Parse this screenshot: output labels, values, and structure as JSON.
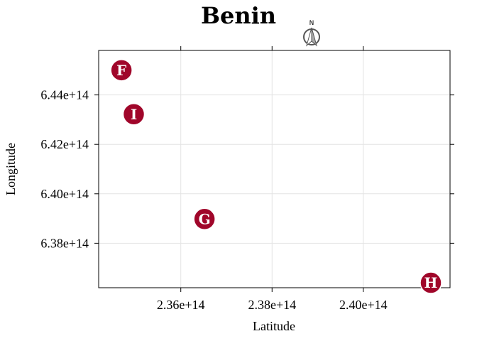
{
  "chart_data": {
    "type": "scatter",
    "title": "Benin",
    "xlabel": "Latitude",
    "ylabel": "Longitude",
    "xlim": [
      234200000000000,
      241900000000000
    ],
    "ylim": [
      636200000000000,
      645800000000000
    ],
    "grid": true,
    "x_ticks": [
      {
        "value": 236000000000000,
        "label": "2.36e+14"
      },
      {
        "value": 238000000000000,
        "label": "2.38e+14"
      },
      {
        "value": 240000000000000,
        "label": "2.40e+14"
      }
    ],
    "y_ticks": [
      {
        "value": 638000000000000,
        "label": "6.38e+14"
      },
      {
        "value": 640000000000000,
        "label": "6.40e+14"
      },
      {
        "value": 642000000000000,
        "label": "6.42e+14"
      },
      {
        "value": 644000000000000,
        "label": "6.44e+14"
      }
    ],
    "points": [
      {
        "label": "F",
        "x": 234700000000000,
        "y": 645000000000000
      },
      {
        "label": "I",
        "x": 234970000000000,
        "y": 643220000000000
      },
      {
        "label": "G",
        "x": 236520000000000,
        "y": 638980000000000
      },
      {
        "label": "H",
        "x": 241480000000000,
        "y": 636400000000000
      }
    ],
    "marker_color": "#a0062a",
    "north_arrow": {
      "letter": "N"
    }
  }
}
